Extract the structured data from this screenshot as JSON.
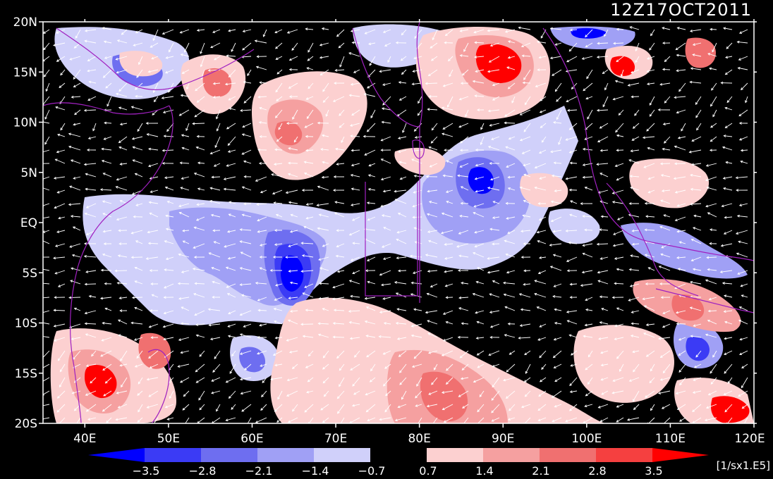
{
  "title": {
    "timestamp": "12Z17OCT2011"
  },
  "map": {
    "lon_range": [
      35,
      120
    ],
    "lat_range": [
      -20,
      20
    ],
    "lat_ticks": [
      {
        "value": 20,
        "label": "20N"
      },
      {
        "value": 15,
        "label": "15N"
      },
      {
        "value": 10,
        "label": "10N"
      },
      {
        "value": 5,
        "label": "5N"
      },
      {
        "value": 0,
        "label": "EQ"
      },
      {
        "value": -5,
        "label": "5S"
      },
      {
        "value": -10,
        "label": "10S"
      },
      {
        "value": -15,
        "label": "15S"
      },
      {
        "value": -20,
        "label": "20S"
      }
    ],
    "lon_ticks": [
      {
        "value": 40,
        "label": "40E"
      },
      {
        "value": 50,
        "label": "50E"
      },
      {
        "value": 60,
        "label": "60E"
      },
      {
        "value": 70,
        "label": "70E"
      },
      {
        "value": 80,
        "label": "80E"
      },
      {
        "value": 90,
        "label": "90E"
      },
      {
        "value": 100,
        "label": "100E"
      },
      {
        "value": 110,
        "label": "110E"
      },
      {
        "value": 120,
        "label": "120E"
      }
    ],
    "field": "shaded divergence / vorticity anomalies with white wind vectors",
    "vector_color": "#ffffff",
    "coastline_color": "#a020c0"
  },
  "colorbar": {
    "levels": [
      "-3.5",
      "-2.8",
      "-2.1",
      "-1.4",
      "-0.7",
      "0.7",
      "1.4",
      "2.1",
      "2.8",
      "3.5"
    ],
    "colors": [
      "#0000ff",
      "#3b3bf5",
      "#6e6ef0",
      "#a0a0f5",
      "#d0d0fa",
      "#000000",
      "#fcd0d0",
      "#f5a0a0",
      "#f07070",
      "#f54040",
      "#ff0000"
    ],
    "units": "[1/sx1.E5]"
  }
}
